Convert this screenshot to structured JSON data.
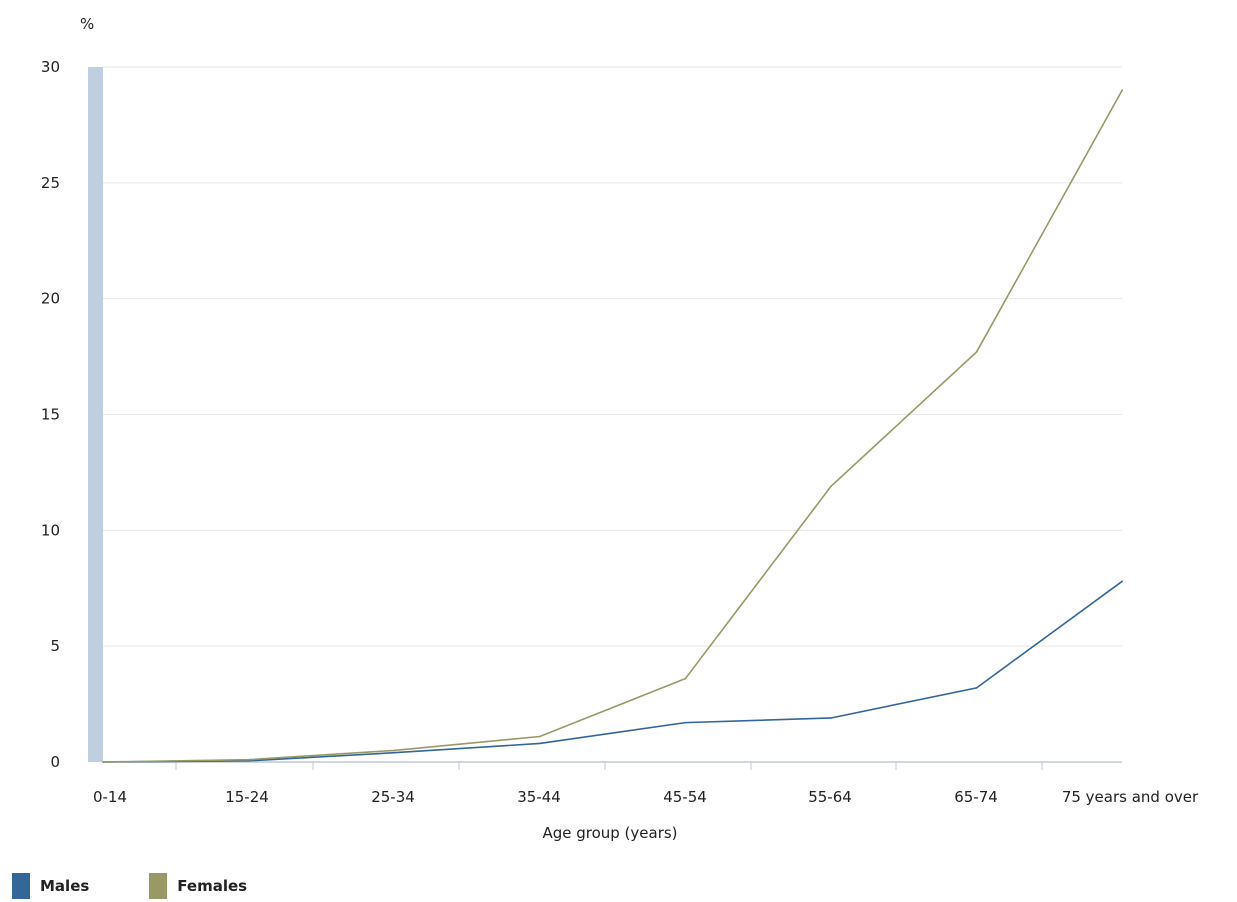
{
  "chart_data": {
    "type": "line",
    "title": "",
    "ylabel": "%",
    "xlabel": "Age group (years)",
    "ylim": [
      0,
      30
    ],
    "yticks": [
      0,
      5,
      10,
      15,
      20,
      25,
      30
    ],
    "grid": true,
    "legend_position": "bottom-left",
    "categories": [
      "0-14",
      "15-24",
      "25-34",
      "35-44",
      "45-54",
      "55-64",
      "65-74",
      "75 years and over"
    ],
    "series": [
      {
        "name": "Males",
        "color": "#336699",
        "values": [
          0.0,
          0.05,
          0.4,
          0.8,
          1.7,
          1.9,
          3.2,
          7.8
        ]
      },
      {
        "name": "Females",
        "color": "#999966",
        "values": [
          0.0,
          0.1,
          0.5,
          1.1,
          3.6,
          11.9,
          17.7,
          29.0
        ]
      }
    ]
  }
}
